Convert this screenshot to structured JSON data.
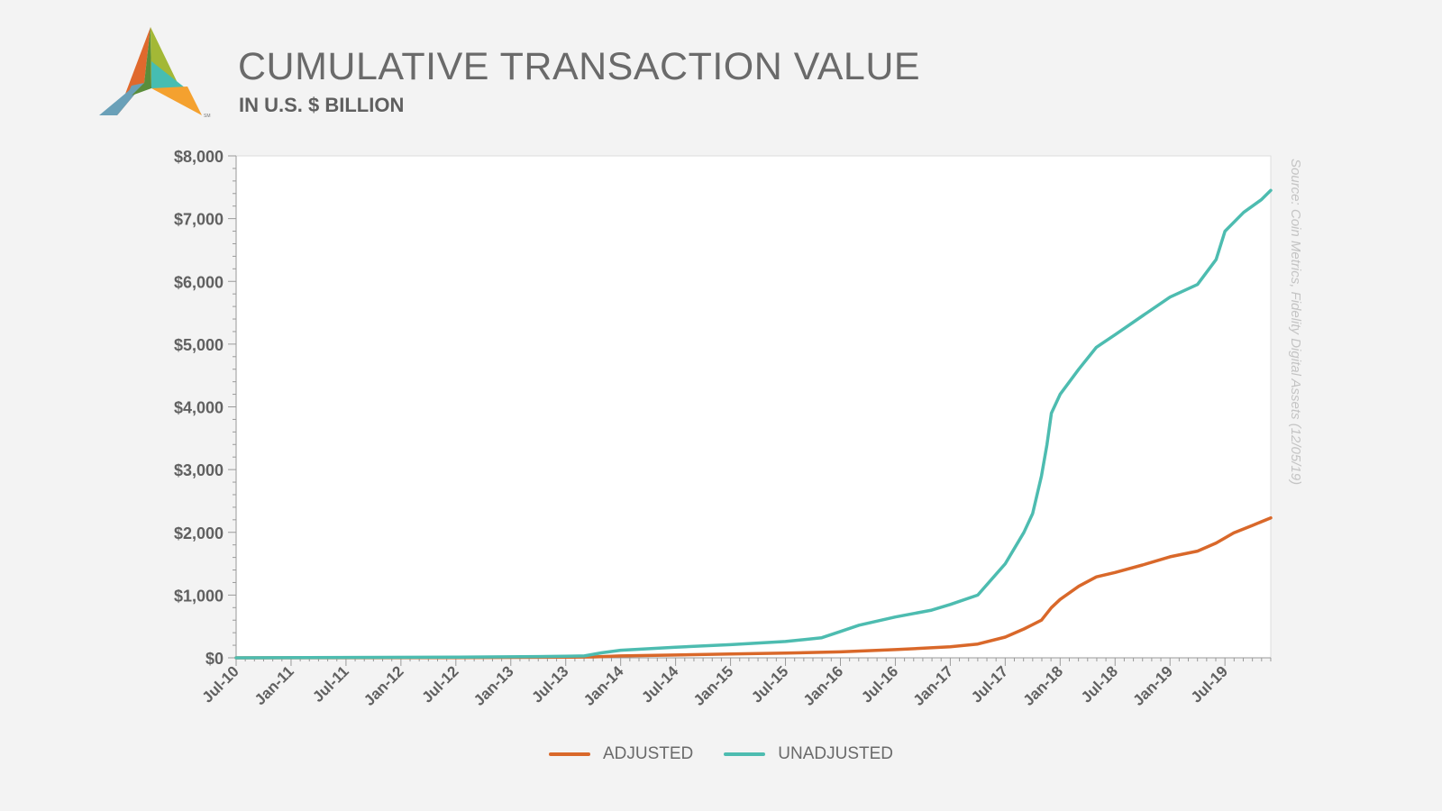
{
  "title": "CUMULATIVE TRANSACTION VALUE",
  "subtitle": "IN U.S. $ BILLION",
  "source": "Source: Coin Metrics, Fidelity Digital Assets (12/05/19)",
  "logo_mark": "SM",
  "colors": {
    "adjusted": "#d9682a",
    "unadjusted": "#4dbcb0",
    "axis": "#8a8a8a",
    "text": "#666666"
  },
  "chart_data": {
    "type": "line",
    "title": "CUMULATIVE TRANSACTION VALUE",
    "subtitle": "IN U.S. $ BILLION",
    "xlabel": "",
    "ylabel": "",
    "x_start": 2010.5,
    "x_end": 2019.917,
    "ylim": [
      0,
      8000
    ],
    "y_ticks": [
      0,
      1000,
      2000,
      3000,
      4000,
      5000,
      6000,
      7000,
      8000
    ],
    "y_tick_labels": [
      "$0",
      "$1,000",
      "$2,000",
      "$3,000",
      "$4,000",
      "$5,000",
      "$6,000",
      "$7,000",
      "$8,000"
    ],
    "x_ticks": [
      2010.5,
      2011.0,
      2011.5,
      2012.0,
      2012.5,
      2013.0,
      2013.5,
      2014.0,
      2014.5,
      2015.0,
      2015.5,
      2016.0,
      2016.5,
      2017.0,
      2017.5,
      2018.0,
      2018.5,
      2019.0,
      2019.5
    ],
    "x_tick_labels": [
      "Jul-10",
      "Jan-11",
      "Jul-11",
      "Jan-12",
      "Jul-12",
      "Jan-13",
      "Jul-13",
      "Jan-14",
      "Jul-14",
      "Jan-15",
      "Jul-15",
      "Jan-16",
      "Jul-16",
      "Jan-17",
      "Jul-17",
      "Jan-18",
      "Jul-18",
      "Jan-19",
      "Jul-19"
    ],
    "legend": [
      "ADJUSTED",
      "UNADJUSTED"
    ],
    "legend_position": "bottom-center",
    "series": [
      {
        "name": "ADJUSTED",
        "x": [
          2010.5,
          2012.5,
          2013.5,
          2013.75,
          2014.0,
          2014.5,
          2015.0,
          2015.5,
          2016.0,
          2016.5,
          2017.0,
          2017.25,
          2017.5,
          2017.67,
          2017.83,
          2017.92,
          2018.0,
          2018.17,
          2018.33,
          2018.5,
          2018.75,
          2019.0,
          2019.25,
          2019.42,
          2019.58,
          2019.75,
          2019.917
        ],
        "values": [
          0,
          5,
          10,
          15,
          30,
          45,
          60,
          75,
          95,
          130,
          175,
          220,
          330,
          460,
          600,
          800,
          930,
          1140,
          1290,
          1360,
          1480,
          1610,
          1700,
          1830,
          1990,
          2110,
          2230
        ]
      },
      {
        "name": "UNADJUSTED",
        "x": [
          2010.5,
          2012.5,
          2013.25,
          2013.67,
          2013.83,
          2014.0,
          2014.5,
          2015.0,
          2015.5,
          2015.83,
          2016.0,
          2016.17,
          2016.5,
          2016.83,
          2017.0,
          2017.25,
          2017.5,
          2017.67,
          2017.75,
          2017.83,
          2017.88,
          2017.92,
          2018.0,
          2018.17,
          2018.33,
          2018.5,
          2018.75,
          2019.0,
          2019.25,
          2019.42,
          2019.5,
          2019.67,
          2019.83,
          2019.917
        ],
        "values": [
          0,
          10,
          20,
          30,
          80,
          120,
          170,
          210,
          260,
          320,
          420,
          520,
          650,
          760,
          850,
          1000,
          1500,
          2000,
          2300,
          2900,
          3400,
          3900,
          4200,
          4600,
          4950,
          5150,
          5450,
          5750,
          5950,
          6350,
          6800,
          7100,
          7300,
          7450
        ]
      }
    ]
  }
}
